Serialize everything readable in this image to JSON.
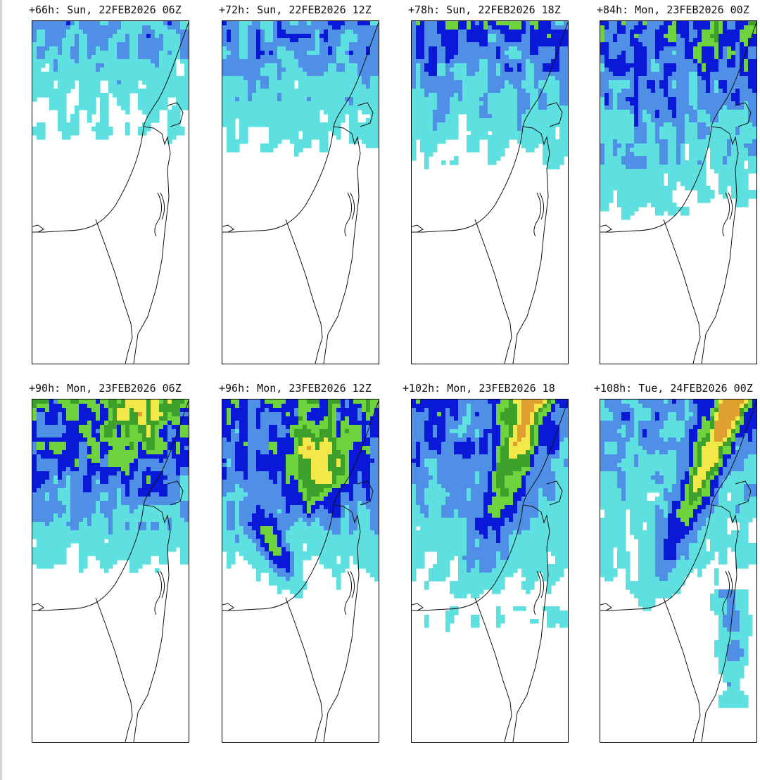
{
  "panels": [
    {
      "title": "+66h: Sun, 22FEB2026 06Z",
      "level": 0
    },
    {
      "title": "+72h: Sun, 22FEB2026 12Z",
      "level": 1
    },
    {
      "title": "+78h: Sun, 22FEB2026 18Z",
      "level": 2
    },
    {
      "title": "+84h: Mon, 23FEB2026 00Z",
      "level": 3
    },
    {
      "title": "+90h: Mon, 23FEB2026 06Z",
      "level": 4
    },
    {
      "title": "+96h: Mon, 23FEB2026 12Z",
      "level": 5
    },
    {
      "title": "+102h: Mon, 23FEB2026 18",
      "level": 6
    },
    {
      "title": "+108h: Tue, 24FEB2026 00Z",
      "level": 7
    }
  ],
  "colors": {
    "level_1": "#5fe0e0",
    "level_2": "#4f8fe6",
    "level_3": "#0a18d8",
    "level_4": "#6ed33c",
    "level_5": "#3ca02a",
    "level_6": "#f2e84a",
    "level_7": "#e0a030",
    "coastline": "#111111",
    "background": "#ffffff"
  }
}
